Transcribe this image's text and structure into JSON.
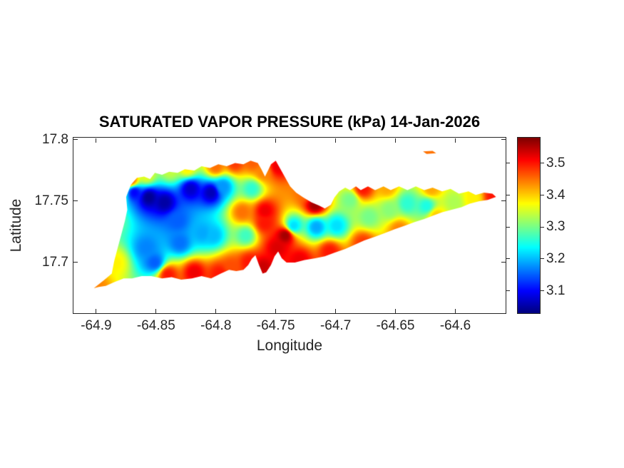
{
  "figure": {
    "title": "SATURATED VAPOR PRESSURE (kPa) 14-Jan-2026",
    "xlabel": "Longitude",
    "ylabel": "Latitude"
  },
  "colors": {
    "background": "#ffffff",
    "axis": "#262626",
    "title": "#000000",
    "colormap_low": "#000080",
    "colormap_high": "#800000"
  },
  "chart_data": {
    "type": "heatmap",
    "title": "SATURATED VAPOR PRESSURE (kPa) 14-Jan-2026",
    "xlabel": "Longitude",
    "ylabel": "Latitude",
    "units": "kPa",
    "colormap": "jet",
    "grid": false,
    "xlim": [
      -64.919,
      -64.558
    ],
    "ylim": [
      17.6587,
      17.8017
    ],
    "xticks": [
      -64.9,
      -64.85,
      -64.8,
      -64.75,
      -64.7,
      -64.65,
      -64.6
    ],
    "xtick_labels": [
      "-64.9",
      "-64.85",
      "-64.8",
      "-64.75",
      "-64.7",
      "-64.65",
      "-64.6"
    ],
    "yticks": [
      17.7,
      17.75,
      17.8
    ],
    "ytick_labels": [
      "17.7",
      "17.75",
      "17.8"
    ],
    "caxis": [
      3.03,
      3.58
    ],
    "colorbar_ticks": [
      3.1,
      3.2,
      3.3,
      3.4,
      3.5
    ],
    "colorbar_tick_labels": [
      "3.1",
      "3.2",
      "3.3",
      "3.4",
      "3.5"
    ],
    "island_outline": [
      [
        -64.902,
        17.679
      ],
      [
        -64.893,
        17.686
      ],
      [
        -64.887,
        17.691
      ],
      [
        -64.885,
        17.701
      ],
      [
        -64.882,
        17.712
      ],
      [
        -64.879,
        17.723
      ],
      [
        -64.876,
        17.734
      ],
      [
        -64.874,
        17.743
      ],
      [
        -64.875,
        17.7535
      ],
      [
        -64.871,
        17.7634
      ],
      [
        -64.866,
        17.769
      ],
      [
        -64.86,
        17.77
      ],
      [
        -64.855,
        17.768
      ],
      [
        -64.851,
        17.773
      ],
      [
        -64.845,
        17.7715
      ],
      [
        -64.839,
        17.774
      ],
      [
        -64.832,
        17.773
      ],
      [
        -64.826,
        17.776
      ],
      [
        -64.818,
        17.775
      ],
      [
        -64.812,
        17.7785
      ],
      [
        -64.805,
        17.777
      ],
      [
        -64.798,
        17.78
      ],
      [
        -64.791,
        17.7785
      ],
      [
        -64.784,
        17.781
      ],
      [
        -64.777,
        17.78
      ],
      [
        -64.771,
        17.783
      ],
      [
        -64.765,
        17.781
      ],
      [
        -64.762,
        17.776
      ],
      [
        -64.759,
        17.77
      ],
      [
        -64.756,
        17.776
      ],
      [
        -64.754,
        17.78
      ],
      [
        -64.75,
        17.783
      ],
      [
        -64.746,
        17.776
      ],
      [
        -64.742,
        17.769
      ],
      [
        -64.738,
        17.762
      ],
      [
        -64.733,
        17.757
      ],
      [
        -64.727,
        17.753
      ],
      [
        -64.72,
        17.749
      ],
      [
        -64.714,
        17.7465
      ],
      [
        -64.709,
        17.744
      ],
      [
        -64.704,
        17.747
      ],
      [
        -64.701,
        17.753
      ],
      [
        -64.697,
        17.758
      ],
      [
        -64.692,
        17.761
      ],
      [
        -64.688,
        17.759
      ],
      [
        -64.683,
        17.762
      ],
      [
        -64.679,
        17.759
      ],
      [
        -64.673,
        17.762
      ],
      [
        -64.667,
        17.759
      ],
      [
        -64.66,
        17.762
      ],
      [
        -64.654,
        17.759
      ],
      [
        -64.647,
        17.762
      ],
      [
        -64.64,
        17.759
      ],
      [
        -64.633,
        17.762
      ],
      [
        -64.626,
        17.759
      ],
      [
        -64.619,
        17.761
      ],
      [
        -64.611,
        17.758
      ],
      [
        -64.604,
        17.76
      ],
      [
        -64.597,
        17.756
      ],
      [
        -64.589,
        17.758
      ],
      [
        -64.583,
        17.755
      ],
      [
        -64.576,
        17.757
      ],
      [
        -64.569,
        17.756
      ],
      [
        -64.566,
        17.7535
      ],
      [
        -64.573,
        17.751
      ],
      [
        -64.58,
        17.75
      ],
      [
        -64.588,
        17.748
      ],
      [
        -64.595,
        17.745
      ],
      [
        -64.603,
        17.743
      ],
      [
        -64.611,
        17.741
      ],
      [
        -64.619,
        17.738
      ],
      [
        -64.626,
        17.7355
      ],
      [
        -64.634,
        17.733
      ],
      [
        -64.642,
        17.73
      ],
      [
        -64.651,
        17.727
      ],
      [
        -64.659,
        17.724
      ],
      [
        -64.667,
        17.721
      ],
      [
        -64.676,
        17.718
      ],
      [
        -64.684,
        17.7145
      ],
      [
        -64.692,
        17.711
      ],
      [
        -64.701,
        17.708
      ],
      [
        -64.709,
        17.705
      ],
      [
        -64.717,
        17.7035
      ],
      [
        -64.726,
        17.702
      ],
      [
        -64.734,
        17.7
      ],
      [
        -64.741,
        17.7
      ],
      [
        -64.745,
        17.7035
      ],
      [
        -64.748,
        17.709
      ],
      [
        -64.751,
        17.705
      ],
      [
        -64.754,
        17.698
      ],
      [
        -64.758,
        17.692
      ],
      [
        -64.761,
        17.691
      ],
      [
        -64.764,
        17.698
      ],
      [
        -64.767,
        17.706
      ],
      [
        -64.77,
        17.703
      ],
      [
        -64.773,
        17.698
      ],
      [
        -64.777,
        17.694
      ],
      [
        -64.783,
        17.693
      ],
      [
        -64.789,
        17.694
      ],
      [
        -64.796,
        17.691
      ],
      [
        -64.804,
        17.687
      ],
      [
        -64.812,
        17.689
      ],
      [
        -64.82,
        17.687
      ],
      [
        -64.829,
        17.686
      ],
      [
        -64.837,
        17.688
      ],
      [
        -64.845,
        17.687
      ],
      [
        -64.854,
        17.689
      ],
      [
        -64.862,
        17.689
      ],
      [
        -64.87,
        17.687
      ],
      [
        -64.877,
        17.687
      ],
      [
        -64.885,
        17.684
      ],
      [
        -64.892,
        17.681
      ],
      [
        -64.898,
        17.68
      ]
    ],
    "cay_outline": [
      [
        -64.627,
        17.7905
      ],
      [
        -64.619,
        17.791
      ],
      [
        -64.616,
        17.789
      ],
      [
        -64.624,
        17.7885
      ]
    ],
    "stations": [
      [
        -64.856,
        17.753,
        3.04
      ],
      [
        -64.843,
        17.749,
        3.05
      ],
      [
        -64.868,
        17.757,
        3.1
      ],
      [
        -64.821,
        17.76,
        3.07
      ],
      [
        -64.804,
        17.757,
        3.06
      ],
      [
        -64.794,
        17.762,
        3.18
      ],
      [
        -64.832,
        17.734,
        3.15
      ],
      [
        -64.858,
        17.712,
        3.17
      ],
      [
        -64.851,
        17.7,
        3.15
      ],
      [
        -64.83,
        17.716,
        3.16
      ],
      [
        -64.811,
        17.724,
        3.19
      ],
      [
        -64.802,
        17.722,
        3.2
      ],
      [
        -64.775,
        17.722,
        3.27
      ],
      [
        -64.77,
        17.76,
        3.26
      ],
      [
        -64.886,
        17.735,
        3.3
      ],
      [
        -64.881,
        17.757,
        3.3
      ],
      [
        -64.884,
        17.7,
        3.38
      ],
      [
        -64.9,
        17.681,
        3.44
      ],
      [
        -64.871,
        17.767,
        3.46
      ],
      [
        -64.858,
        17.771,
        3.36
      ],
      [
        -64.838,
        17.775,
        3.34
      ],
      [
        -64.824,
        17.777,
        3.38
      ],
      [
        -64.8,
        17.778,
        3.45
      ],
      [
        -64.784,
        17.781,
        3.48
      ],
      [
        -64.769,
        17.782,
        3.46
      ],
      [
        -64.748,
        17.778,
        3.52
      ],
      [
        -64.76,
        17.774,
        3.44
      ],
      [
        -64.778,
        17.741,
        3.45
      ],
      [
        -64.759,
        17.742,
        3.52
      ],
      [
        -64.759,
        17.732,
        3.5
      ],
      [
        -64.742,
        17.722,
        3.56
      ],
      [
        -64.749,
        17.712,
        3.53
      ],
      [
        -64.84,
        17.69,
        3.5
      ],
      [
        -64.818,
        17.692,
        3.52
      ],
      [
        -64.797,
        17.691,
        3.5
      ],
      [
        -64.787,
        17.696,
        3.47
      ],
      [
        -64.772,
        17.7,
        3.5
      ],
      [
        -64.761,
        17.696,
        3.54
      ],
      [
        -64.717,
        17.747,
        3.56
      ],
      [
        -64.724,
        17.757,
        3.45
      ],
      [
        -64.735,
        17.73,
        3.22
      ],
      [
        -64.716,
        17.729,
        3.19
      ],
      [
        -64.699,
        17.73,
        3.22
      ],
      [
        -64.688,
        17.751,
        3.3
      ],
      [
        -64.672,
        17.737,
        3.3
      ],
      [
        -64.655,
        17.743,
        3.31
      ],
      [
        -64.64,
        17.748,
        3.26
      ],
      [
        -64.624,
        17.746,
        3.25
      ],
      [
        -64.601,
        17.749,
        3.33
      ],
      [
        -64.585,
        17.752,
        3.38
      ],
      [
        -64.568,
        17.754,
        3.5
      ],
      [
        -64.657,
        17.761,
        3.42
      ],
      [
        -64.677,
        17.76,
        3.5
      ],
      [
        -64.62,
        17.76,
        3.42
      ],
      [
        -64.677,
        17.716,
        3.48
      ],
      [
        -64.647,
        17.727,
        3.44
      ],
      [
        -64.705,
        17.709,
        3.5
      ],
      [
        -64.73,
        17.702,
        3.52
      ],
      [
        -64.616,
        17.738,
        3.4
      ],
      [
        -64.623,
        17.79,
        3.45
      ]
    ]
  }
}
